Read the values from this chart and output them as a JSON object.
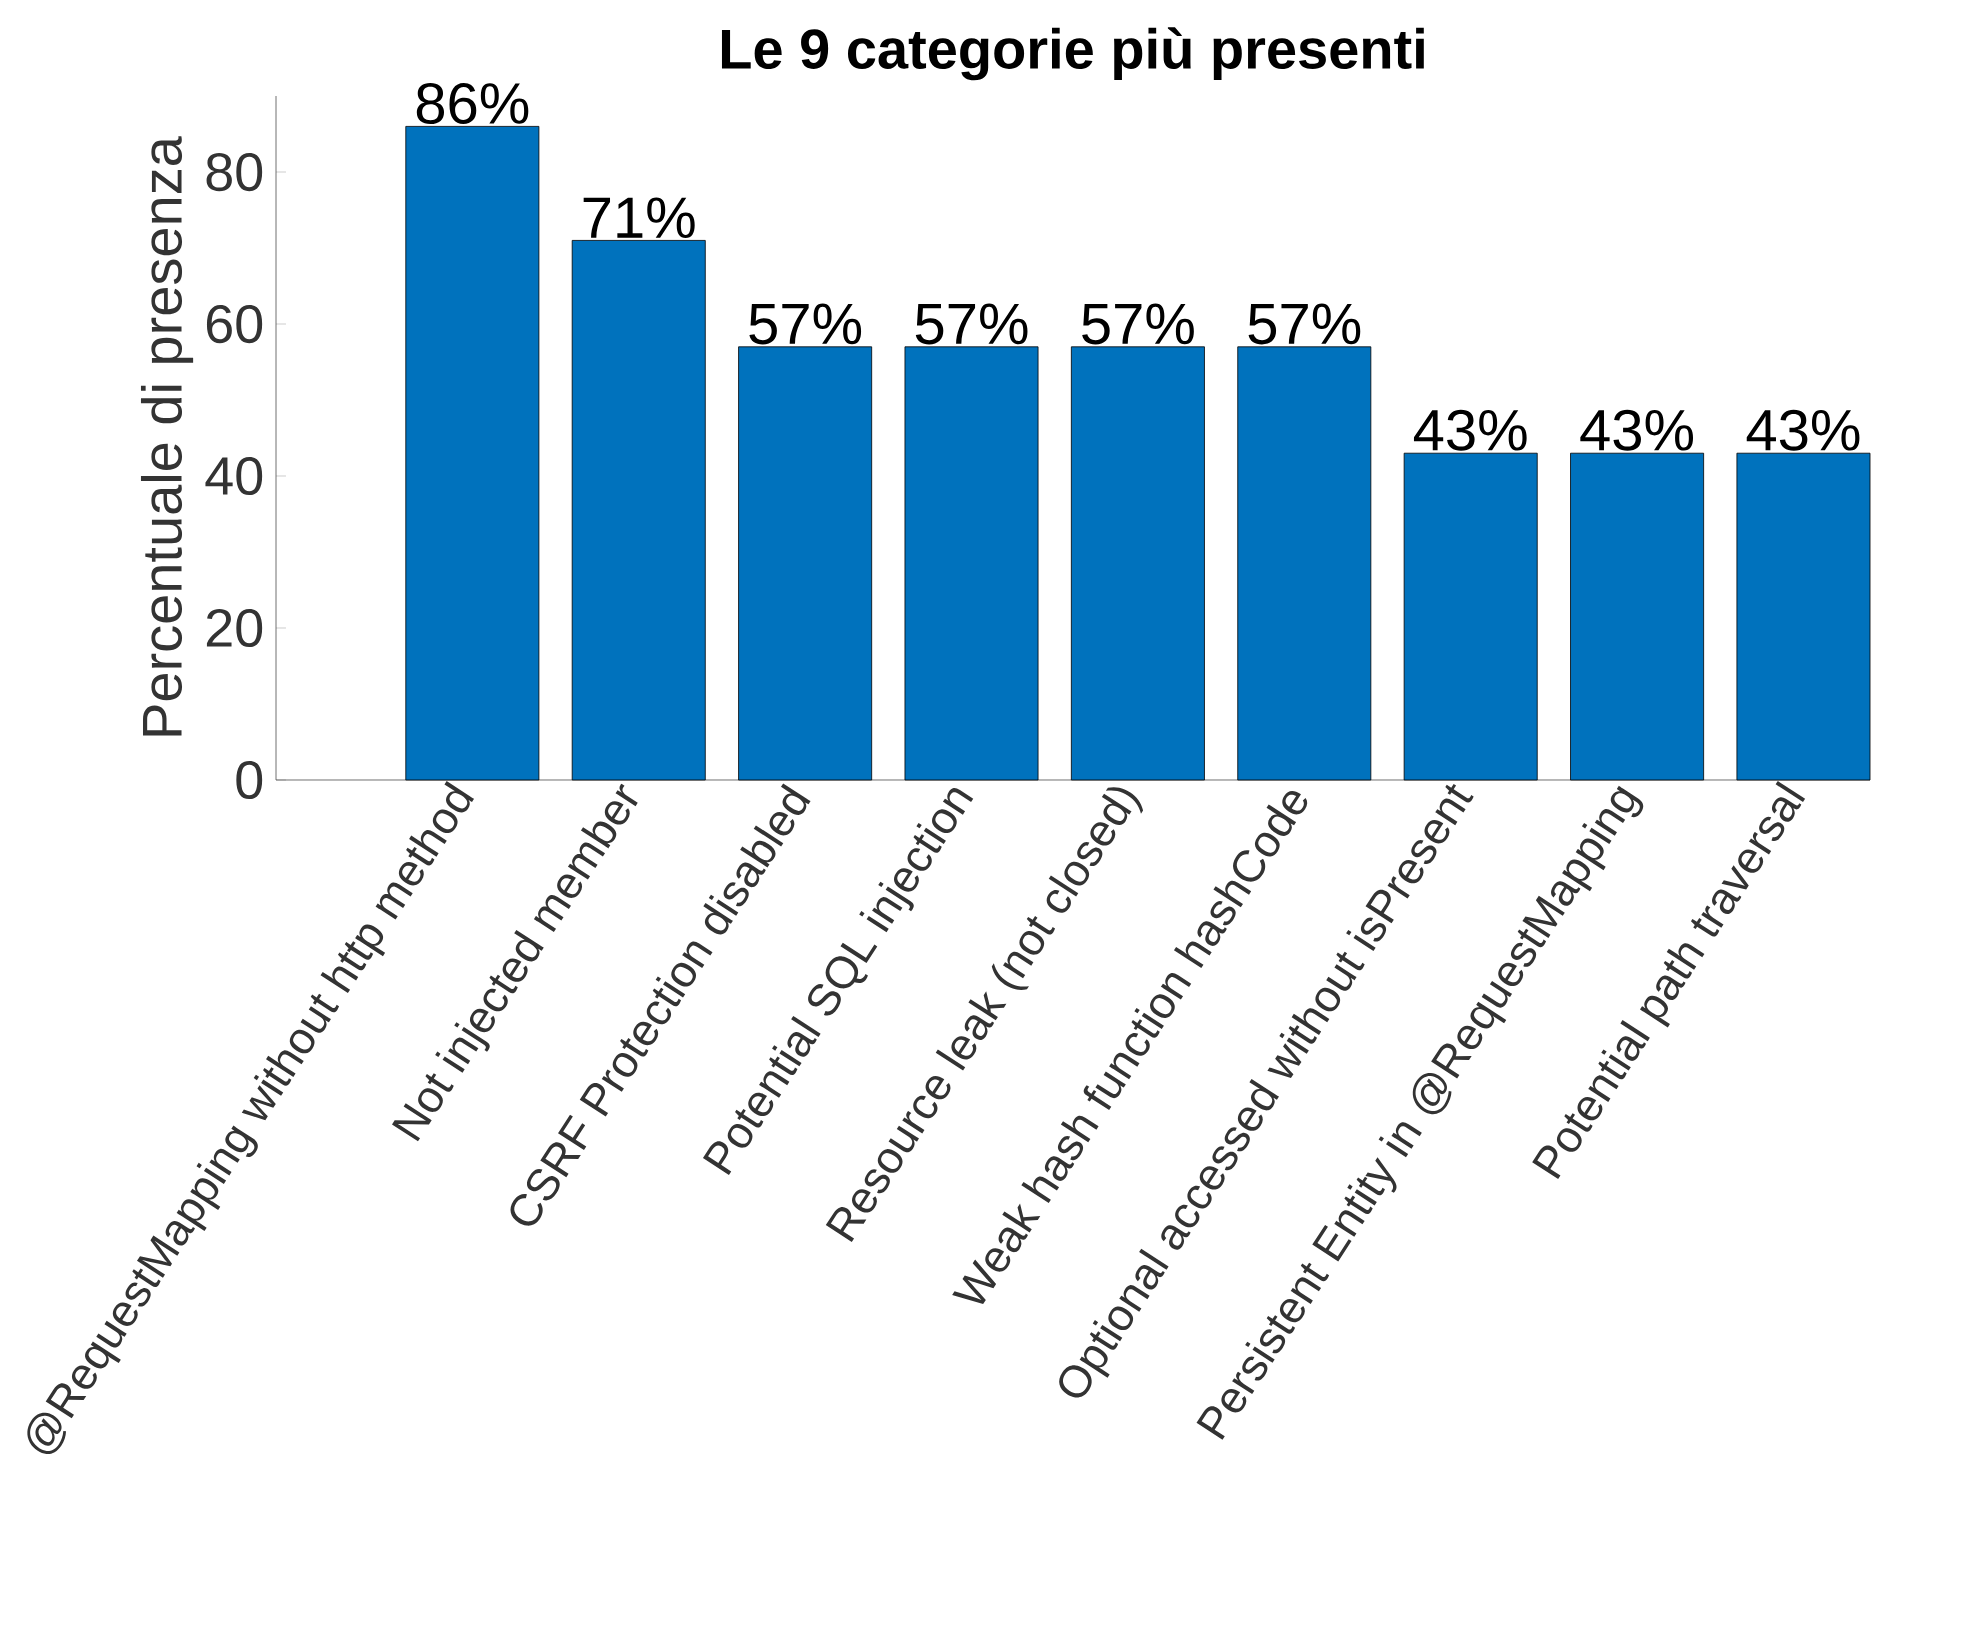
{
  "chart_data": {
    "type": "bar",
    "title": "Le 9 categorie più presenti",
    "ylabel": "Percentuale di presenza",
    "categories": [
      "@RequestMapping without http method",
      "Not injected member",
      "CSRF Protection disabled",
      "Potential SQL injection",
      "Resource leak (not closed)",
      "Weak hash function hashCode",
      "Optional accessed without isPresent",
      "Persistent Entity in @RequestMapping",
      "Potential path traversal"
    ],
    "values": [
      86,
      71,
      57,
      57,
      57,
      57,
      43,
      43,
      43
    ],
    "value_labels": [
      "86%",
      "71%",
      "57%",
      "57%",
      "57%",
      "57%",
      "43%",
      "43%",
      "43%"
    ],
    "color": "#0072bd",
    "ylim": [
      0,
      90
    ],
    "yticks": [
      0,
      20,
      40,
      60,
      80
    ],
    "grid": false
  }
}
